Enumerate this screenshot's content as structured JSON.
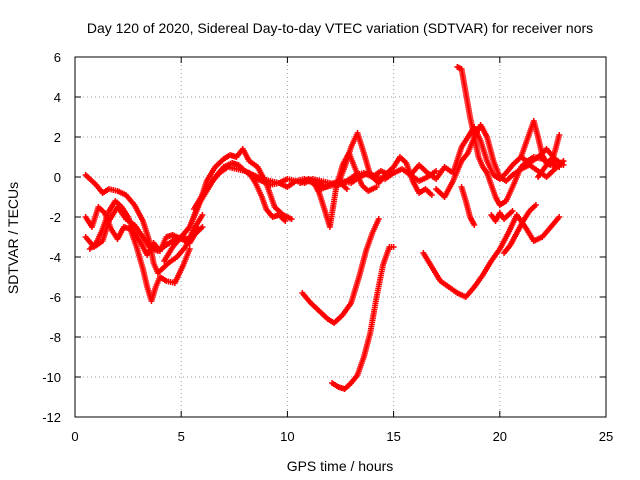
{
  "chart_data": {
    "type": "scatter",
    "title": "Day 120 of 2020, Sidereal Day-to-day VTEC variation (SDTVAR) for receiver nors",
    "xlabel": "GPS time / hours",
    "ylabel": "SDTVAR / TECUs",
    "xlim": [
      0,
      25
    ],
    "ylim": [
      -12,
      6
    ],
    "xticks": [
      0,
      5,
      10,
      15,
      20,
      25
    ],
    "yticks": [
      -12,
      -10,
      -8,
      -6,
      -4,
      -2,
      0,
      2,
      4,
      6
    ],
    "grid": true,
    "marker": "+",
    "color": "#ff0000",
    "series": [
      {
        "name": "s1",
        "x": [
          0.5,
          0.7,
          1.0,
          1.3,
          1.6,
          2.0,
          2.4,
          2.8,
          3.2,
          3.5,
          3.7,
          3.9,
          4.1,
          4.4,
          4.8,
          5.2,
          5.6,
          6.0
        ],
        "y": [
          0.1,
          -0.1,
          -0.4,
          -0.8,
          -0.6,
          -0.7,
          -0.9,
          -1.4,
          -2.2,
          -3.2,
          -4.3,
          -4.8,
          -4.6,
          -4.3,
          -4.0,
          -3.5,
          -2.6,
          -1.9
        ]
      },
      {
        "name": "s2",
        "x": [
          0.5,
          0.8,
          1.1,
          1.4,
          1.7,
          2.0,
          2.3,
          2.6,
          2.9,
          3.2,
          3.4,
          3.6,
          3.8,
          4.0,
          4.3,
          4.7,
          5.1,
          5.4
        ],
        "y": [
          -2.0,
          -2.5,
          -1.5,
          -1.8,
          -2.6,
          -3.1,
          -2.5,
          -2.6,
          -3.5,
          -4.6,
          -5.5,
          -6.2,
          -5.5,
          -5.0,
          -5.2,
          -5.3,
          -4.4,
          -3.6
        ]
      },
      {
        "name": "s3",
        "x": [
          0.5,
          0.9,
          1.3,
          1.6,
          2.0,
          2.4,
          2.8,
          3.2,
          3.5,
          3.9,
          4.3,
          4.6,
          5.0,
          5.3,
          5.6,
          6.0
        ],
        "y": [
          -3.0,
          -3.5,
          -3.2,
          -2.2,
          -1.5,
          -2.1,
          -2.4,
          -3.0,
          -3.5,
          -3.7,
          -3.4,
          -3.2,
          -3.0,
          -3.1,
          -2.9,
          -2.5
        ]
      },
      {
        "name": "s4",
        "x": [
          0.7,
          1.0,
          1.3,
          1.6,
          1.9,
          2.2,
          2.5,
          2.8,
          3.1,
          3.4,
          3.7,
          4.0,
          4.3,
          4.6,
          5.0,
          5.4,
          5.8
        ],
        "y": [
          -3.6,
          -3.3,
          -2.6,
          -1.7,
          -1.2,
          -1.5,
          -2.0,
          -2.8,
          -3.3,
          -3.9,
          -3.3,
          -3.7,
          -3.0,
          -2.9,
          -3.1,
          -3.3,
          -2.6
        ]
      },
      {
        "name": "s5",
        "x": [
          4.2,
          4.6,
          5.0,
          5.4,
          5.8,
          6.2,
          6.6,
          7.0,
          7.4,
          7.7,
          8.0,
          8.4,
          8.8,
          9.2,
          9.6,
          10.0,
          10.4,
          10.8,
          11.2,
          11.6,
          12.0,
          12.4,
          12.8,
          13.2,
          13.6,
          14.0,
          14.4,
          14.8
        ],
        "y": [
          -4.2,
          -3.5,
          -3.0,
          -2.5,
          -1.4,
          -0.7,
          0.0,
          0.5,
          0.7,
          0.6,
          0.3,
          0.1,
          -0.1,
          -0.2,
          -0.3,
          -0.1,
          -0.2,
          -0.3,
          -0.1,
          -0.2,
          -0.3,
          -0.4,
          -0.2,
          0.1,
          0.2,
          0.0,
          0.3,
          0.1
        ]
      },
      {
        "name": "s6",
        "x": [
          5.0,
          5.4,
          5.8,
          6.2,
          6.6,
          7.0,
          7.3,
          7.6,
          7.9,
          8.2,
          8.6,
          9.0,
          9.4,
          9.8,
          10.2
        ],
        "y": [
          -3.0,
          -2.5,
          -1.5,
          -0.2,
          0.5,
          0.9,
          1.1,
          1.0,
          1.4,
          0.8,
          0.5,
          -0.3,
          -1.5,
          -1.9,
          -2.1
        ]
      },
      {
        "name": "s7",
        "x": [
          5.6,
          6.0,
          6.4,
          6.8,
          7.2,
          7.6,
          8.0,
          8.4,
          8.8,
          9.2,
          9.6,
          10.0,
          10.4,
          10.8,
          11.2,
          11.6,
          12.0,
          12.4,
          12.8
        ],
        "y": [
          -1.6,
          -0.9,
          -0.3,
          0.2,
          0.5,
          0.4,
          0.3,
          0.0,
          -0.2,
          -0.4,
          -0.3,
          -0.5,
          -0.2,
          -0.1,
          -0.3,
          -0.6,
          -0.4,
          -0.2,
          -0.6
        ]
      },
      {
        "name": "s8",
        "x": [
          8.2,
          8.5,
          8.8,
          9.0,
          9.3,
          9.6,
          9.9
        ],
        "y": [
          0.2,
          -0.3,
          -1.0,
          -1.6,
          -2.0,
          -1.9,
          -2.2
        ]
      },
      {
        "name": "s9",
        "x": [
          10.6,
          11.0,
          11.4,
          11.8,
          12.2,
          12.6,
          13.0,
          13.4,
          13.8,
          14.2,
          14.6,
          15.0,
          15.4,
          15.8,
          16.2,
          16.6,
          17.0
        ],
        "y": [
          -0.3,
          -0.1,
          -0.3,
          -0.5,
          -0.4,
          -0.2,
          -0.3,
          0.0,
          0.2,
          0.0,
          -0.1,
          0.2,
          0.4,
          0.1,
          -0.2,
          0.0,
          0.3
        ]
      },
      {
        "name": "s10",
        "x": [
          11.2,
          11.5,
          11.8,
          12.0,
          12.3,
          12.6,
          12.9,
          13.2,
          13.5,
          13.8,
          14.2
        ],
        "y": [
          -0.2,
          -0.8,
          -1.8,
          -2.5,
          -0.5,
          0.6,
          1.2,
          0.4,
          -0.4,
          -0.7,
          -0.5
        ]
      },
      {
        "name": "s11",
        "x": [
          12.4,
          12.7,
          13.0,
          13.3,
          13.6,
          13.9,
          14.3,
          14.7,
          15.0,
          15.3,
          15.6,
          15.9,
          16.2,
          16.5,
          16.8
        ],
        "y": [
          -0.3,
          0.5,
          1.5,
          2.2,
          1.2,
          0.1,
          -0.3,
          0.2,
          0.5,
          1.0,
          0.7,
          -0.2,
          -0.8,
          -0.6,
          -0.9
        ]
      },
      {
        "name": "s12",
        "x": [
          10.7,
          11.1,
          11.5,
          11.9,
          12.2,
          12.6,
          13.0,
          13.4,
          13.7,
          14.0,
          14.3
        ],
        "y": [
          -5.8,
          -6.3,
          -6.7,
          -7.1,
          -7.3,
          -6.9,
          -6.3,
          -4.9,
          -3.7,
          -2.8,
          -2.1
        ]
      },
      {
        "name": "s13",
        "x": [
          12.1,
          12.4,
          12.7,
          13.0,
          13.3,
          13.6,
          13.9,
          14.2,
          14.5,
          14.8,
          15.0
        ],
        "y": [
          -10.3,
          -10.5,
          -10.6,
          -10.3,
          -9.9,
          -9.0,
          -7.8,
          -6.0,
          -4.4,
          -3.5,
          -3.5
        ]
      },
      {
        "name": "s14",
        "x": [
          16.4,
          16.8,
          17.2,
          17.6,
          18.0,
          18.4,
          18.8,
          19.2,
          19.6,
          20.0,
          20.4,
          20.8,
          21.2,
          21.6,
          22.0,
          22.4,
          22.8
        ],
        "y": [
          -3.8,
          -4.5,
          -5.2,
          -5.5,
          -5.8,
          -6.0,
          -5.5,
          -4.9,
          -4.2,
          -3.6,
          -2.8,
          -1.9,
          -2.5,
          -3.2,
          -3.0,
          -2.5,
          -2.0
        ]
      },
      {
        "name": "s15",
        "x": [
          15.8,
          16.2,
          16.6,
          17.0,
          17.4,
          17.8,
          18.2,
          18.5,
          18.8,
          19.1,
          19.4,
          19.7,
          20.0,
          20.3,
          20.6,
          21.0,
          21.4,
          21.8,
          22.2,
          22.6,
          23.0
        ],
        "y": [
          0.1,
          0.6,
          0.2,
          -0.1,
          0.5,
          0.2,
          1.5,
          2.0,
          2.5,
          1.8,
          0.8,
          0.1,
          -0.1,
          0.2,
          0.6,
          1.0,
          0.7,
          1.0,
          1.4,
          0.9,
          0.6
        ]
      },
      {
        "name": "s16",
        "x": [
          18.0,
          18.2,
          18.4,
          18.6,
          18.8,
          19.0,
          19.2,
          19.4,
          19.6,
          19.8,
          20.0,
          20.3,
          20.6,
          21.0,
          21.3,
          21.6,
          22.0,
          22.4,
          22.8
        ],
        "y": [
          5.5,
          5.4,
          4.2,
          3.0,
          2.0,
          1.0,
          0.5,
          0.2,
          -0.4,
          -1.0,
          -1.4,
          -1.2,
          -0.5,
          0.5,
          0.8,
          1.0,
          0.9,
          0.6,
          0.5
        ]
      },
      {
        "name": "s17",
        "x": [
          17.0,
          17.4,
          17.8,
          18.2,
          18.5,
          18.8,
          19.1,
          19.4,
          19.7,
          20.0,
          20.3,
          20.6,
          21.0,
          21.4,
          21.8,
          22.2,
          22.6,
          23.0
        ],
        "y": [
          -0.6,
          -1.0,
          -0.2,
          0.8,
          1.2,
          2.0,
          2.6,
          2.0,
          0.8,
          0.0,
          -0.2,
          0.1,
          0.4,
          0.6,
          0.3,
          0.0,
          0.4,
          0.8
        ]
      },
      {
        "name": "s18",
        "x": [
          18.2,
          18.4,
          18.6,
          18.8
        ],
        "y": [
          -0.5,
          -1.2,
          -2.0,
          -2.4
        ]
      },
      {
        "name": "s19",
        "x": [
          19.6,
          19.8,
          20.0,
          20.2,
          20.4,
          20.6
        ],
        "y": [
          -1.9,
          -2.2,
          -1.8,
          -2.1,
          -1.9,
          -1.7
        ]
      },
      {
        "name": "s20",
        "x": [
          20.2,
          20.5,
          20.8,
          21.1,
          21.4,
          21.7
        ],
        "y": [
          -3.8,
          -3.4,
          -2.8,
          -2.2,
          -1.7,
          -1.4
        ]
      },
      {
        "name": "s21",
        "x": [
          21.0,
          21.2,
          21.4,
          21.6,
          21.8,
          22.0,
          22.2,
          22.4,
          22.6,
          22.8
        ],
        "y": [
          1.0,
          1.6,
          2.2,
          2.8,
          2.0,
          1.1,
          0.7,
          0.6,
          1.3,
          2.1
        ]
      },
      {
        "name": "s22",
        "x": [
          21.8,
          22.0,
          22.2,
          22.4,
          22.6
        ],
        "y": [
          0.0,
          0.3,
          0.6,
          0.9,
          0.6
        ]
      }
    ]
  }
}
